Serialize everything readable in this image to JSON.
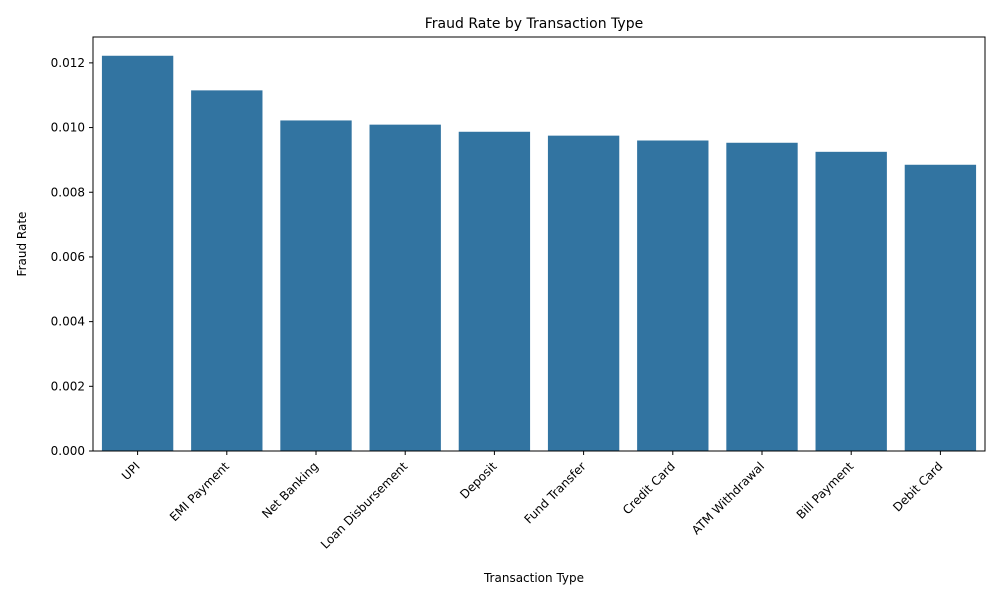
{
  "chart_data": {
    "type": "bar",
    "title": "Fraud Rate by Transaction Type",
    "xlabel": "Transaction Type",
    "ylabel": "Fraud Rate",
    "categories": [
      "UPI",
      "EMI Payment",
      "Net Banking",
      "Loan Disbursement",
      "Deposit",
      "Fund Transfer",
      "Credit Card",
      "ATM Withdrawal",
      "Bill Payment",
      "Debit Card"
    ],
    "values": [
      0.01222,
      0.01115,
      0.01022,
      0.01009,
      0.00987,
      0.00975,
      0.0096,
      0.00953,
      0.00925,
      0.00885
    ],
    "ylim": [
      0,
      0.0128
    ],
    "yticks": [
      "0.000",
      "0.002",
      "0.004",
      "0.006",
      "0.008",
      "0.010",
      "0.012"
    ],
    "bar_color": "#3274a1",
    "grid": false,
    "legend": false
  }
}
